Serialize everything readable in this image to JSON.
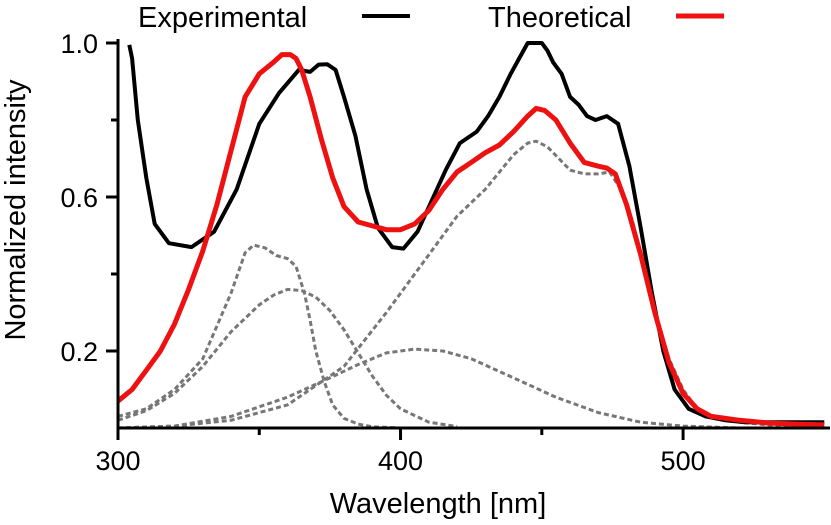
{
  "chart_data": {
    "type": "line",
    "xlabel": "Wavelength [nm]",
    "ylabel": "Normalized intensity",
    "xlim": [
      300,
      552
    ],
    "ylim": [
      0,
      1.0
    ],
    "xticks": [
      300,
      400,
      500
    ],
    "xtick_labels": [
      "300",
      "400",
      "500"
    ],
    "yticks": [
      0.2,
      0.6,
      1.0
    ],
    "ytick_labels": [
      "0.2",
      "0.6",
      "1.0"
    ],
    "grid": false,
    "legend_position": "top",
    "series": [
      {
        "name": "Experimental",
        "color": "#000000",
        "style": "solid",
        "x": [
          304,
          305,
          307,
          310,
          313,
          318,
          326,
          334,
          342,
          350,
          357,
          364,
          368,
          371,
          374,
          377,
          380,
          384,
          388,
          392,
          397,
          401,
          406,
          411,
          416,
          421,
          427,
          431,
          435,
          439,
          442,
          445,
          448,
          450,
          452,
          454,
          457,
          460,
          463,
          466,
          469,
          473,
          477,
          481,
          485,
          489,
          493,
          497,
          502,
          508,
          515,
          522,
          530,
          540,
          550
        ],
        "y": [
          0.995,
          0.96,
          0.8,
          0.65,
          0.53,
          0.48,
          0.47,
          0.51,
          0.62,
          0.79,
          0.87,
          0.93,
          0.925,
          0.944,
          0.945,
          0.93,
          0.86,
          0.76,
          0.62,
          0.52,
          0.47,
          0.466,
          0.51,
          0.59,
          0.67,
          0.74,
          0.77,
          0.81,
          0.86,
          0.92,
          0.96,
          1.0,
          1.0,
          1.0,
          0.98,
          0.95,
          0.92,
          0.86,
          0.84,
          0.81,
          0.8,
          0.81,
          0.79,
          0.68,
          0.52,
          0.35,
          0.2,
          0.1,
          0.05,
          0.03,
          0.02,
          0.015,
          0.015,
          0.015,
          0.015
        ]
      },
      {
        "name": "Theoretical",
        "color": "#ee1111",
        "style": "solid",
        "x": [
          300,
          305,
          310,
          315,
          320,
          325,
          330,
          335,
          340,
          345,
          350,
          355,
          358,
          361,
          363,
          365,
          368,
          372,
          376,
          380,
          385,
          390,
          395,
          400,
          405,
          410,
          415,
          420,
          425,
          430,
          435,
          440,
          445,
          448,
          451,
          455,
          460,
          465,
          470,
          473,
          476,
          480,
          485,
          490,
          495,
          500,
          505,
          510,
          520,
          530,
          540,
          550
        ],
        "y": [
          0.07,
          0.1,
          0.15,
          0.2,
          0.27,
          0.36,
          0.46,
          0.58,
          0.72,
          0.86,
          0.92,
          0.95,
          0.97,
          0.97,
          0.96,
          0.93,
          0.86,
          0.75,
          0.65,
          0.575,
          0.535,
          0.525,
          0.515,
          0.515,
          0.53,
          0.565,
          0.62,
          0.665,
          0.69,
          0.715,
          0.735,
          0.77,
          0.81,
          0.83,
          0.825,
          0.8,
          0.74,
          0.69,
          0.68,
          0.675,
          0.66,
          0.58,
          0.45,
          0.3,
          0.17,
          0.09,
          0.05,
          0.03,
          0.02,
          0.013,
          0.01,
          0.008
        ]
      },
      {
        "color": "#777777",
        "style": "dashed",
        "x": [
          300,
          310,
          320,
          330,
          340,
          345,
          348,
          352,
          356,
          360,
          363,
          366,
          368,
          370,
          373,
          376,
          380,
          385,
          390,
          400
        ],
        "y": [
          0.03,
          0.05,
          0.1,
          0.18,
          0.35,
          0.455,
          0.475,
          0.468,
          0.448,
          0.44,
          0.42,
          0.35,
          0.28,
          0.2,
          0.12,
          0.06,
          0.025,
          0.01,
          0.003,
          0
        ]
      },
      {
        "color": "#777777",
        "style": "dashed",
        "x": [
          300,
          310,
          320,
          330,
          340,
          350,
          355,
          360,
          365,
          370,
          375,
          380,
          385,
          390,
          395,
          400,
          410,
          420
        ],
        "y": [
          0.02,
          0.045,
          0.09,
          0.16,
          0.25,
          0.32,
          0.345,
          0.36,
          0.357,
          0.34,
          0.305,
          0.255,
          0.195,
          0.135,
          0.085,
          0.05,
          0.015,
          0.004
        ]
      },
      {
        "color": "#777777",
        "style": "dashed",
        "x": [
          300,
          320,
          340,
          360,
          375,
          385,
          395,
          405,
          415,
          425,
          440,
          455,
          470,
          485,
          500,
          520
        ],
        "y": [
          0,
          0.005,
          0.03,
          0.08,
          0.13,
          0.165,
          0.195,
          0.205,
          0.2,
          0.18,
          0.13,
          0.08,
          0.04,
          0.015,
          0.005,
          0
        ]
      },
      {
        "color": "#777777",
        "style": "dashed",
        "x": [
          300,
          320,
          340,
          360,
          380,
          395,
          410,
          420,
          430,
          440,
          445,
          448,
          452,
          456,
          460,
          465,
          470,
          474,
          478,
          482,
          486,
          490,
          495,
          500,
          505,
          510,
          520,
          530,
          540,
          550
        ],
        "y": [
          0,
          0.005,
          0.02,
          0.06,
          0.16,
          0.3,
          0.45,
          0.55,
          0.62,
          0.71,
          0.74,
          0.745,
          0.73,
          0.7,
          0.67,
          0.66,
          0.66,
          0.665,
          0.62,
          0.54,
          0.42,
          0.3,
          0.18,
          0.1,
          0.05,
          0.03,
          0.015,
          0.008,
          0.004,
          0.002
        ]
      }
    ]
  }
}
